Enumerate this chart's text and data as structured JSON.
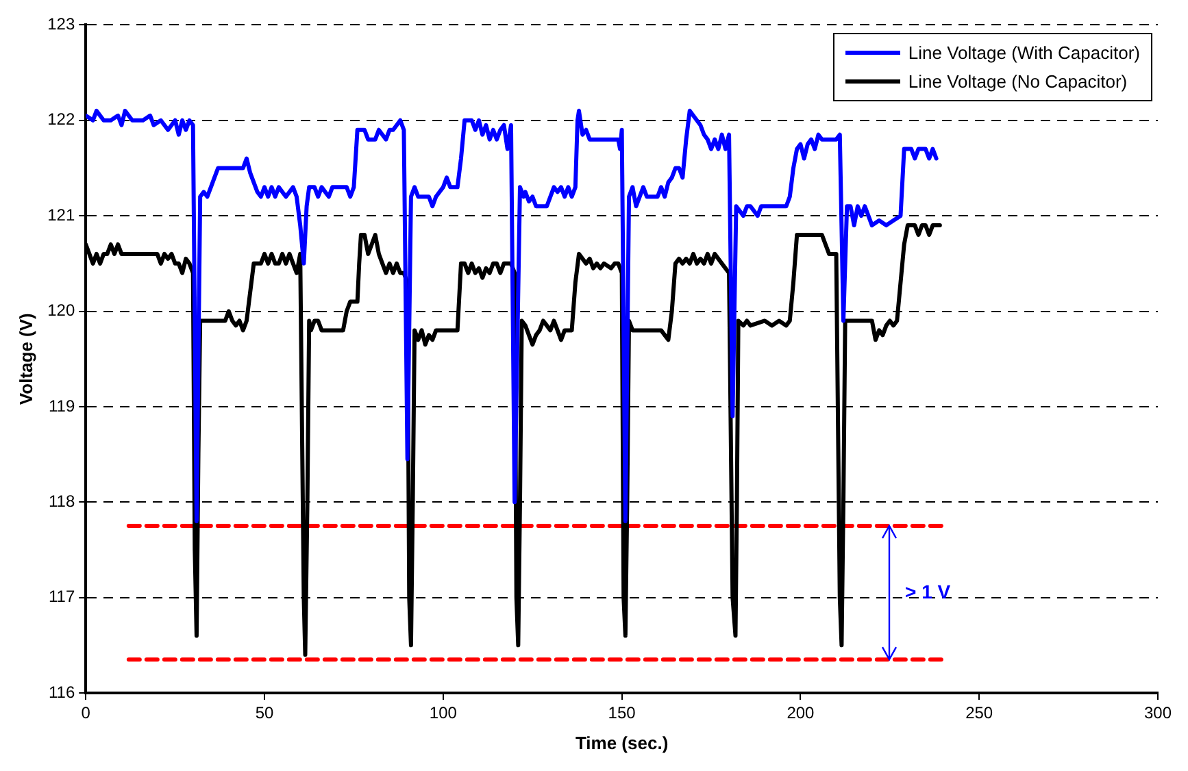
{
  "chart_data": {
    "type": "line",
    "xlabel": "Time (sec.)",
    "ylabel": "Voltage (V)",
    "xlim": [
      0,
      300
    ],
    "xticks": [
      0,
      50,
      100,
      150,
      200,
      250,
      300
    ],
    "ylim": [
      116,
      123
    ],
    "yticks": [
      116,
      117,
      118,
      119,
      120,
      121,
      122,
      123
    ],
    "grid": "y",
    "legend": "top right",
    "marker": "none",
    "line_style": "solid",
    "annotations": [
      "> 1 V"
    ],
    "series": [
      {
        "name": "Line Voltage (With Capacitor)",
        "color": "#0000ff",
        "x": [
          0,
          2,
          3,
          5,
          7,
          9,
          10,
          11,
          13,
          16,
          18,
          19,
          21,
          23,
          25,
          26,
          27,
          28,
          29,
          30,
          31,
          32,
          33,
          34,
          35,
          36,
          37,
          44,
          45,
          46,
          47,
          48,
          49,
          50,
          51,
          52,
          53,
          54,
          56,
          58,
          59,
          60,
          61,
          61.8,
          62.5,
          64,
          65,
          66,
          68,
          69,
          71,
          72,
          73,
          74,
          75,
          76,
          78,
          79,
          81,
          82,
          83,
          84,
          85,
          86,
          87,
          88,
          89,
          90,
          91,
          92,
          93,
          96,
          97,
          98,
          99,
          100,
          101,
          102,
          104,
          105,
          106,
          108,
          109,
          110,
          111,
          112,
          113,
          114,
          115,
          116,
          117,
          118,
          119,
          120,
          121.5,
          122.5,
          123,
          124,
          125,
          126,
          129,
          130,
          131,
          132,
          133,
          134,
          135,
          136,
          137,
          137.6,
          138,
          139,
          140,
          141,
          149,
          149.5,
          150,
          151,
          152,
          153,
          154,
          155,
          156,
          157,
          160,
          161,
          162,
          163,
          164,
          165,
          166,
          167,
          168,
          169,
          170,
          171,
          172,
          173,
          174,
          175,
          176,
          177,
          178,
          179,
          180,
          181,
          182,
          184,
          185,
          186,
          188,
          189,
          196,
          197,
          198,
          199,
          200,
          201,
          202,
          203,
          204,
          205,
          206,
          210,
          211,
          212,
          213,
          214,
          215,
          216,
          217,
          218,
          219,
          220,
          222,
          224,
          226,
          228,
          229,
          231,
          232,
          233,
          235,
          236,
          237,
          238
        ],
        "values": [
          122.05,
          122,
          122.1,
          122,
          122,
          122.05,
          121.95,
          122.1,
          122,
          122,
          122.05,
          121.95,
          122,
          121.9,
          122,
          121.85,
          122,
          121.9,
          122,
          121.95,
          117.8,
          121.2,
          121.25,
          121.2,
          121.3,
          121.4,
          121.5,
          121.5,
          121.6,
          121.45,
          121.35,
          121.25,
          121.2,
          121.3,
          121.2,
          121.3,
          121.2,
          121.3,
          121.2,
          121.3,
          121.2,
          120.9,
          120.5,
          121.1,
          121.3,
          121.3,
          121.2,
          121.3,
          121.2,
          121.3,
          121.3,
          121.3,
          121.3,
          121.2,
          121.3,
          121.9,
          121.9,
          121.8,
          121.8,
          121.9,
          121.85,
          121.8,
          121.9,
          121.9,
          121.95,
          122,
          121.9,
          118.45,
          121.2,
          121.3,
          121.2,
          121.2,
          121.1,
          121.2,
          121.25,
          121.3,
          121.4,
          121.3,
          121.3,
          121.6,
          122,
          122,
          121.9,
          122,
          121.85,
          121.95,
          121.8,
          121.9,
          121.8,
          121.9,
          121.95,
          121.7,
          121.95,
          118,
          121.3,
          121.2,
          121.25,
          121.15,
          121.2,
          121.1,
          121.1,
          121.2,
          121.3,
          121.25,
          121.3,
          121.2,
          121.3,
          121.2,
          121.3,
          122,
          122.1,
          121.85,
          121.9,
          121.8,
          121.8,
          121.7,
          121.9,
          117.8,
          121.2,
          121.3,
          121.1,
          121.2,
          121.3,
          121.2,
          121.2,
          121.3,
          121.2,
          121.35,
          121.4,
          121.5,
          121.5,
          121.4,
          121.8,
          122.1,
          122.05,
          122,
          121.95,
          121.85,
          121.8,
          121.7,
          121.8,
          121.7,
          121.85,
          121.7,
          121.85,
          118.9,
          121.1,
          121,
          121.1,
          121.1,
          121,
          121.1,
          121.1,
          121.2,
          121.5,
          121.7,
          121.75,
          121.6,
          121.75,
          121.8,
          121.7,
          121.85,
          121.8,
          121.8,
          121.85,
          119.9,
          121.1,
          121.1,
          120.9,
          121.1,
          121,
          121.1,
          121,
          120.9,
          120.95,
          120.9,
          120.95,
          121,
          121.7,
          121.7,
          121.6,
          121.7,
          121.7,
          121.6,
          121.7,
          121.6
        ]
      },
      {
        "name": "Line Voltage (No Capacitor)",
        "color": "#000000",
        "x": [
          0,
          1,
          2,
          3,
          4,
          5,
          6,
          7,
          8,
          9,
          10,
          20,
          21,
          22,
          23,
          24,
          25,
          26,
          27,
          28,
          29,
          30,
          30.5,
          31,
          31.5,
          32,
          39,
          40,
          41,
          42,
          43,
          44,
          45,
          46,
          47,
          49,
          50,
          51,
          52,
          53,
          54,
          55,
          56,
          57,
          58,
          59,
          60,
          61,
          61.4,
          62,
          62.5,
          63,
          64,
          65,
          66,
          68,
          70,
          72,
          73,
          74,
          76,
          76.5,
          77,
          78,
          79,
          80,
          81,
          82,
          83,
          84,
          85,
          86,
          87,
          88,
          89,
          90,
          90.5,
          91,
          91.5,
          92,
          93,
          94,
          95,
          96,
          97,
          98,
          104,
          105,
          106,
          107,
          108,
          109,
          110,
          111,
          112,
          113,
          114,
          115,
          116,
          117,
          119,
          120,
          120.5,
          121,
          121.5,
          122,
          123,
          124,
          125,
          126,
          127,
          128,
          129,
          130,
          131,
          132,
          133,
          134,
          136,
          137,
          138,
          139,
          140,
          141,
          142,
          143,
          144,
          145,
          147,
          148,
          149,
          150,
          150.5,
          151,
          151.5,
          152,
          153,
          161,
          162,
          163,
          164,
          165,
          166,
          167,
          168,
          169,
          170,
          171,
          172,
          173,
          174,
          175,
          176,
          178,
          180,
          181,
          181.8,
          182.2,
          182.6,
          184,
          185,
          186,
          190,
          192,
          194,
          196,
          197,
          198,
          199,
          206,
          207,
          208,
          210,
          211,
          211.5,
          212,
          212.5,
          220,
          221,
          222,
          223,
          224,
          225,
          226,
          227,
          228,
          229,
          230,
          232,
          233,
          234,
          235,
          236,
          237,
          239
        ],
        "values": [
          120.7,
          120.6,
          120.5,
          120.6,
          120.5,
          120.6,
          120.6,
          120.7,
          120.6,
          120.7,
          120.6,
          120.6,
          120.5,
          120.6,
          120.55,
          120.6,
          120.5,
          120.5,
          120.4,
          120.55,
          120.5,
          120.4,
          117.5,
          116.6,
          118.5,
          119.9,
          119.9,
          120,
          119.9,
          119.85,
          119.9,
          119.8,
          119.9,
          120.2,
          120.5,
          120.5,
          120.6,
          120.5,
          120.6,
          120.5,
          120.5,
          120.6,
          120.5,
          120.6,
          120.5,
          120.4,
          120.6,
          117,
          116.4,
          118,
          119.9,
          119.8,
          119.9,
          119.9,
          119.8,
          119.8,
          119.8,
          119.8,
          120,
          120.1,
          120.1,
          120.5,
          120.8,
          120.8,
          120.6,
          120.7,
          120.8,
          120.6,
          120.5,
          120.4,
          120.5,
          120.4,
          120.5,
          120.4,
          120.4,
          120.3,
          117,
          116.5,
          118,
          119.8,
          119.7,
          119.8,
          119.65,
          119.75,
          119.7,
          119.8,
          119.8,
          120.5,
          120.5,
          120.4,
          120.5,
          120.4,
          120.45,
          120.35,
          120.45,
          120.4,
          120.5,
          120.5,
          120.4,
          120.5,
          120.5,
          120.4,
          117,
          116.5,
          118,
          119.9,
          119.85,
          119.75,
          119.65,
          119.75,
          119.8,
          119.9,
          119.85,
          119.8,
          119.9,
          119.8,
          119.7,
          119.8,
          119.8,
          120.3,
          120.6,
          120.55,
          120.5,
          120.55,
          120.45,
          120.5,
          120.45,
          120.5,
          120.45,
          120.5,
          120.5,
          120.4,
          117,
          116.6,
          118,
          119.9,
          119.8,
          119.8,
          119.75,
          119.7,
          120,
          120.5,
          120.55,
          120.5,
          120.55,
          120.5,
          120.6,
          120.5,
          120.55,
          120.5,
          120.6,
          120.5,
          120.6,
          120.5,
          120.4,
          117,
          116.6,
          118,
          119.9,
          119.85,
          119.9,
          119.85,
          119.9,
          119.85,
          119.9,
          119.85,
          119.9,
          120.3,
          120.8,
          120.8,
          120.7,
          120.6,
          120.6,
          117,
          116.5,
          118,
          119.9,
          119.9,
          119.7,
          119.8,
          119.75,
          119.85,
          119.9,
          119.85,
          119.9,
          120.3,
          120.7,
          120.9,
          120.9,
          120.8,
          120.9,
          120.9,
          120.8,
          120.9,
          120.9
        ]
      },
      {
        "color": "#ff0000",
        "line_style": "dashed",
        "x": [
          12,
          240
        ],
        "values": [
          117.75,
          117.75
        ]
      },
      {
        "color": "#ff0000",
        "line_style": "dashed",
        "x": [
          12,
          240
        ],
        "values": [
          116.35,
          116.35
        ]
      }
    ]
  }
}
